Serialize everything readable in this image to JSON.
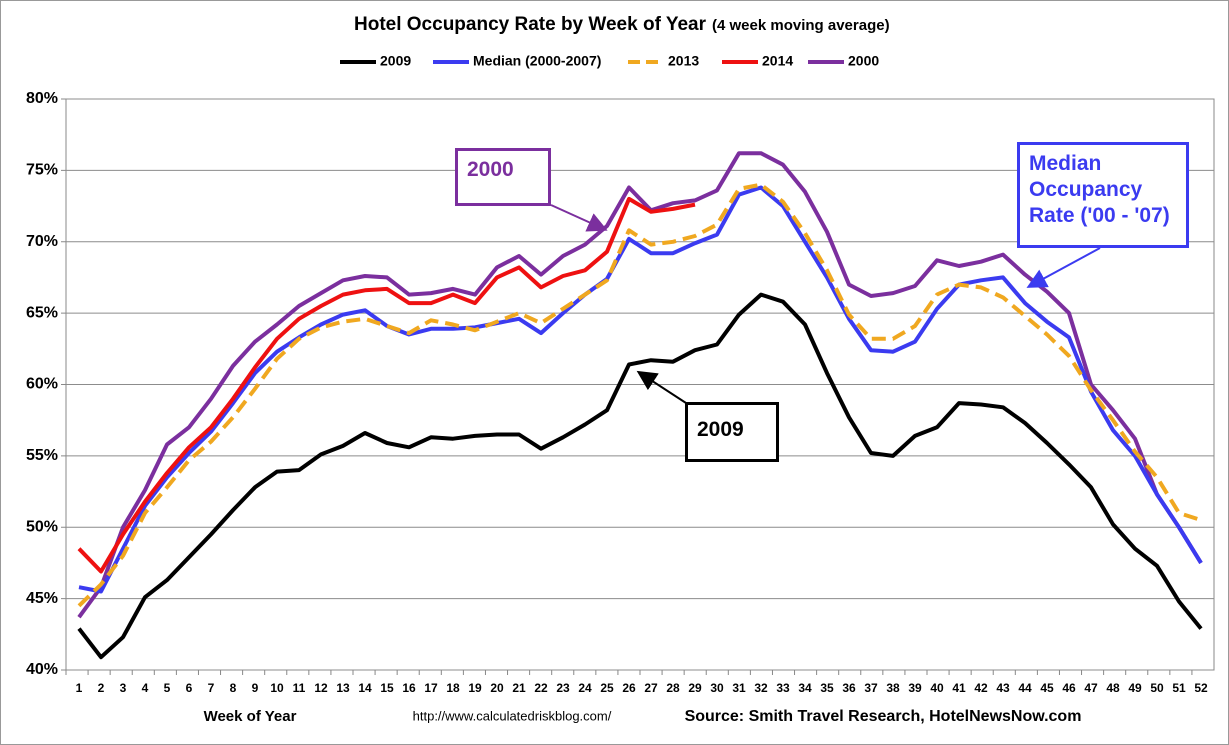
{
  "chart_data": {
    "type": "line",
    "title": "Hotel Occupancy Rate by  Week of Year",
    "subtitle": "(4 week moving average)",
    "x_label": "Week of Year",
    "url": "http://www.calculatedriskblog.com/",
    "source": "Source: Smith Travel Research, HotelNewsNow.com",
    "categories": [
      "1",
      "2",
      "3",
      "4",
      "5",
      "6",
      "7",
      "8",
      "9",
      "10",
      "11",
      "12",
      "13",
      "14",
      "15",
      "16",
      "17",
      "18",
      "19",
      "20",
      "21",
      "22",
      "23",
      "24",
      "25",
      "26",
      "27",
      "28",
      "29",
      "30",
      "31",
      "32",
      "33",
      "34",
      "35",
      "36",
      "37",
      "38",
      "39",
      "40",
      "41",
      "42",
      "43",
      "44",
      "45",
      "46",
      "47",
      "48",
      "49",
      "50",
      "51",
      "52"
    ],
    "ylim": [
      40,
      80
    ],
    "yticks": [
      {
        "value": 40,
        "label": "40%"
      },
      {
        "value": 45,
        "label": "45%"
      },
      {
        "value": 50,
        "label": "50%"
      },
      {
        "value": 55,
        "label": "55%"
      },
      {
        "value": 60,
        "label": "60%"
      },
      {
        "value": 65,
        "label": "65%"
      },
      {
        "value": 70,
        "label": "70%"
      },
      {
        "value": 75,
        "label": "75%"
      },
      {
        "value": 80,
        "label": "80%"
      }
    ],
    "grid": true,
    "legend": "top",
    "series": [
      {
        "name": "2009",
        "color": "#000000",
        "values": [
          42.9,
          40.9,
          42.3,
          45.1,
          46.3,
          47.9,
          49.5,
          51.2,
          52.8,
          53.9,
          54.0,
          55.1,
          55.7,
          56.6,
          55.9,
          55.6,
          56.3,
          56.2,
          56.4,
          56.5,
          56.5,
          55.5,
          56.3,
          57.2,
          58.2,
          61.4,
          61.7,
          61.6,
          62.4,
          62.8,
          64.9,
          66.3,
          65.8,
          64.2,
          60.8,
          57.7,
          55.2,
          55.0,
          56.4,
          57.0,
          58.7,
          58.6,
          58.4,
          57.3,
          55.9,
          54.4,
          52.8,
          50.2,
          48.5,
          47.3,
          44.8,
          42.9
        ]
      },
      {
        "name": "Median (2000-2007)",
        "color": "#3b3bf0",
        "values": [
          45.8,
          45.5,
          48.5,
          51.5,
          53.5,
          55.2,
          56.7,
          58.7,
          60.8,
          62.3,
          63.3,
          64.2,
          64.9,
          65.2,
          64.1,
          63.5,
          63.9,
          63.9,
          64.0,
          64.3,
          64.6,
          63.6,
          65.0,
          66.3,
          67.4,
          70.2,
          69.2,
          69.2,
          69.9,
          70.5,
          73.3,
          73.8,
          72.5,
          70.0,
          67.5,
          64.6,
          62.4,
          62.3,
          63.0,
          65.3,
          67.0,
          67.3,
          67.5,
          65.7,
          64.4,
          63.3,
          59.5,
          56.8,
          55.0,
          52.3,
          50.0,
          47.5
        ]
      },
      {
        "name": "2013",
        "color": "#f0a820",
        "dashed": true,
        "values": [
          44.5,
          46.0,
          48.0,
          51.0,
          52.8,
          54.7,
          56.0,
          57.7,
          59.7,
          61.8,
          63.2,
          64.0,
          64.4,
          64.6,
          64.1,
          63.6,
          64.5,
          64.2,
          63.8,
          64.4,
          65.0,
          64.3,
          65.3,
          66.3,
          67.3,
          70.8,
          69.8,
          70.0,
          70.4,
          71.2,
          73.7,
          74.0,
          72.8,
          70.6,
          68.0,
          64.9,
          63.2,
          63.2,
          64.1,
          66.3,
          67.0,
          66.8,
          66.1,
          64.8,
          63.5,
          62.0,
          59.6,
          57.5,
          55.3,
          53.5,
          51.0,
          50.5
        ]
      },
      {
        "name": "2014",
        "color": "#ee1111",
        "values": [
          48.5,
          46.9,
          49.5,
          51.8,
          53.8,
          55.6,
          57.0,
          59.0,
          61.2,
          63.2,
          64.6,
          65.5,
          66.3,
          66.6,
          66.7,
          65.7,
          65.7,
          66.3,
          65.7,
          67.5,
          68.2,
          66.8,
          67.6,
          68.0,
          69.3,
          73.0,
          72.1,
          72.3,
          72.6,
          null,
          null,
          null,
          null,
          null,
          null,
          null,
          null,
          null,
          null,
          null,
          null,
          null,
          null,
          null,
          null,
          null,
          null,
          null,
          null,
          null,
          null,
          null
        ]
      },
      {
        "name": "2000",
        "color": "#7b2f9e",
        "values": [
          43.7,
          45.8,
          50.0,
          52.6,
          55.8,
          57.0,
          59.0,
          61.3,
          63.0,
          64.2,
          65.5,
          66.4,
          67.3,
          67.6,
          67.5,
          66.3,
          66.4,
          66.7,
          66.3,
          68.2,
          69.0,
          67.7,
          69.0,
          69.8,
          71.1,
          73.8,
          72.2,
          72.7,
          72.9,
          73.6,
          76.2,
          76.2,
          75.4,
          73.5,
          70.7,
          67.0,
          66.2,
          66.4,
          66.9,
          68.7,
          68.3,
          68.6,
          69.1,
          67.7,
          66.5,
          65.0,
          60.0,
          58.2,
          56.2,
          52.3,
          50.0,
          47.5
        ]
      }
    ],
    "annotations": [
      {
        "text": [
          "2000"
        ],
        "color": "#7b2f9e"
      },
      {
        "text": [
          "Median",
          "Occupancy",
          "Rate ('00 - '07)"
        ],
        "color": "#3b3bf0"
      },
      {
        "text": [
          "2009"
        ],
        "color": "#000000"
      }
    ]
  }
}
